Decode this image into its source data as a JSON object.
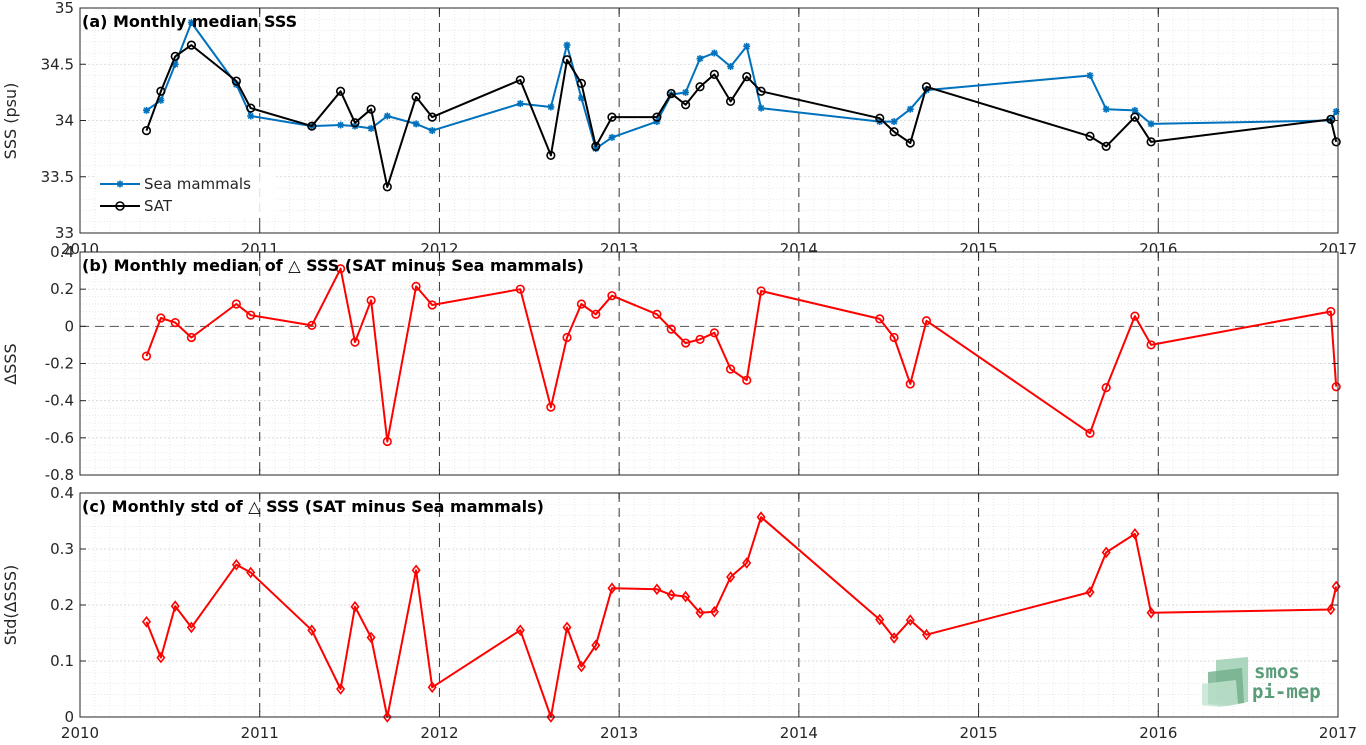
{
  "chart_data": [
    {
      "type": "line",
      "title": "(a) Monthly median SSS",
      "ylabel": "SSS (psu)",
      "xlabel": "",
      "xlim": [
        2010,
        2017
      ],
      "ylim": [
        33,
        35
      ],
      "yticks": [
        "33",
        "33.5",
        "34",
        "34.5",
        "35"
      ],
      "xticks": [
        "2010",
        "2011",
        "2012",
        "2013",
        "2014",
        "2015",
        "2016",
        "2017"
      ],
      "grid": true,
      "legend": "bottom-left",
      "series": [
        {
          "name": "Sea mammals",
          "color": "#0072BD",
          "marker": "asterisk",
          "x": [
            2010.37,
            2010.45,
            2010.53,
            2010.62,
            2010.87,
            2010.95,
            2011.29,
            2011.45,
            2011.53,
            2011.62,
            2011.71,
            2011.87,
            2011.96,
            2012.45,
            2012.62,
            2012.71,
            2012.79,
            2012.87,
            2012.96,
            2013.21,
            2013.29,
            2013.37,
            2013.45,
            2013.53,
            2013.62,
            2013.71,
            2013.79,
            2014.45,
            2014.53,
            2014.62,
            2014.71,
            2015.62,
            2015.71,
            2015.87,
            2015.96,
            2016.96,
            2016.99
          ],
          "y": [
            34.09,
            34.18,
            34.5,
            34.87,
            34.32,
            34.04,
            33.95,
            33.96,
            33.95,
            33.93,
            34.04,
            33.97,
            33.91,
            34.15,
            34.12,
            34.67,
            34.2,
            33.75,
            33.85,
            33.99,
            34.23,
            34.25,
            34.55,
            34.6,
            34.48,
            34.66,
            34.11,
            33.99,
            33.99,
            34.1,
            34.27,
            34.4,
            34.1,
            34.09,
            33.97,
            34.0,
            34.08
          ]
        },
        {
          "name": "SAT",
          "color": "#000000",
          "marker": "circle",
          "x": [
            2010.37,
            2010.45,
            2010.53,
            2010.62,
            2010.87,
            2010.95,
            2011.29,
            2011.45,
            2011.53,
            2011.62,
            2011.71,
            2011.87,
            2011.96,
            2012.45,
            2012.62,
            2012.71,
            2012.79,
            2012.87,
            2012.96,
            2013.21,
            2013.29,
            2013.37,
            2013.45,
            2013.53,
            2013.62,
            2013.71,
            2013.79,
            2014.45,
            2014.53,
            2014.62,
            2014.71,
            2015.62,
            2015.71,
            2015.87,
            2015.96,
            2016.96,
            2016.99
          ],
          "y": [
            33.91,
            34.26,
            34.57,
            34.67,
            34.35,
            34.11,
            33.95,
            34.26,
            33.98,
            34.1,
            33.41,
            34.21,
            34.03,
            34.36,
            33.69,
            34.54,
            34.33,
            33.77,
            34.03,
            34.03,
            34.24,
            34.14,
            34.3,
            34.41,
            34.17,
            34.39,
            34.26,
            34.02,
            33.9,
            33.8,
            34.3,
            33.86,
            33.77,
            34.03,
            33.81,
            34.01,
            33.81
          ]
        }
      ]
    },
    {
      "type": "line",
      "title": "(b) Monthly median of △ SSS (SAT minus Sea mammals)",
      "ylabel": "ΔSSS",
      "xlabel": "",
      "xlim": [
        2010,
        2017
      ],
      "ylim": [
        -0.8,
        0.4
      ],
      "yticks": [
        "-0.8",
        "-0.6",
        "-0.4",
        "-0.2",
        "0",
        "0.2",
        "0.4"
      ],
      "grid": true,
      "reference_line": 0,
      "series": [
        {
          "name": "",
          "color": "#FF0000",
          "marker": "circle",
          "x": [
            2010.37,
            2010.45,
            2010.53,
            2010.62,
            2010.87,
            2010.95,
            2011.29,
            2011.45,
            2011.53,
            2011.62,
            2011.71,
            2011.87,
            2011.96,
            2012.45,
            2012.62,
            2012.71,
            2012.79,
            2012.87,
            2012.96,
            2013.21,
            2013.29,
            2013.37,
            2013.45,
            2013.53,
            2013.62,
            2013.71,
            2013.79,
            2014.45,
            2014.53,
            2014.62,
            2014.71,
            2015.62,
            2015.71,
            2015.87,
            2015.96,
            2016.96,
            2016.99
          ],
          "y": [
            -0.16,
            0.045,
            0.02,
            -0.06,
            0.12,
            0.06,
            0.005,
            0.31,
            -0.085,
            0.14,
            -0.62,
            0.215,
            0.115,
            0.2,
            -0.435,
            -0.06,
            0.12,
            0.065,
            0.165,
            0.065,
            -0.015,
            -0.09,
            -0.07,
            -0.035,
            -0.23,
            -0.29,
            0.19,
            0.04,
            -0.06,
            -0.31,
            0.03,
            -0.575,
            -0.33,
            0.055,
            -0.1,
            0.08,
            -0.325
          ]
        }
      ]
    },
    {
      "type": "line",
      "title": "(c) Monthly std of △ SSS (SAT minus Sea mammals)",
      "ylabel": "Std(ΔSSS)",
      "xlabel": "",
      "xlim": [
        2010,
        2017
      ],
      "ylim": [
        0,
        0.4
      ],
      "yticks": [
        "0",
        "0.1",
        "0.2",
        "0.3",
        "0.4"
      ],
      "xticks": [
        "2010",
        "2011",
        "2012",
        "2013",
        "2014",
        "2015",
        "2016",
        "2017"
      ],
      "grid": true,
      "series": [
        {
          "name": "",
          "color": "#FF0000",
          "marker": "diamond",
          "x": [
            2010.37,
            2010.45,
            2010.53,
            2010.62,
            2010.87,
            2010.95,
            2011.29,
            2011.45,
            2011.53,
            2011.62,
            2011.71,
            2011.87,
            2011.96,
            2012.45,
            2012.62,
            2012.71,
            2012.79,
            2012.87,
            2012.96,
            2013.21,
            2013.29,
            2013.37,
            2013.45,
            2013.53,
            2013.62,
            2013.71,
            2013.79,
            2014.45,
            2014.53,
            2014.62,
            2014.71,
            2015.62,
            2015.71,
            2015.87,
            2015.96,
            2016.96,
            2016.99
          ],
          "y": [
            0.17,
            0.106,
            0.198,
            0.16,
            0.272,
            0.258,
            0.155,
            0.05,
            0.197,
            0.142,
            0.0,
            0.262,
            0.053,
            0.155,
            0.0,
            0.16,
            0.09,
            0.128,
            0.23,
            0.228,
            0.218,
            0.215,
            0.186,
            0.188,
            0.25,
            0.275,
            0.357,
            0.174,
            0.141,
            0.173,
            0.147,
            0.223,
            0.294,
            0.327,
            0.186,
            0.192,
            0.233
          ]
        }
      ]
    }
  ],
  "logo": {
    "line1": "smos",
    "line2": "pi-mep"
  }
}
